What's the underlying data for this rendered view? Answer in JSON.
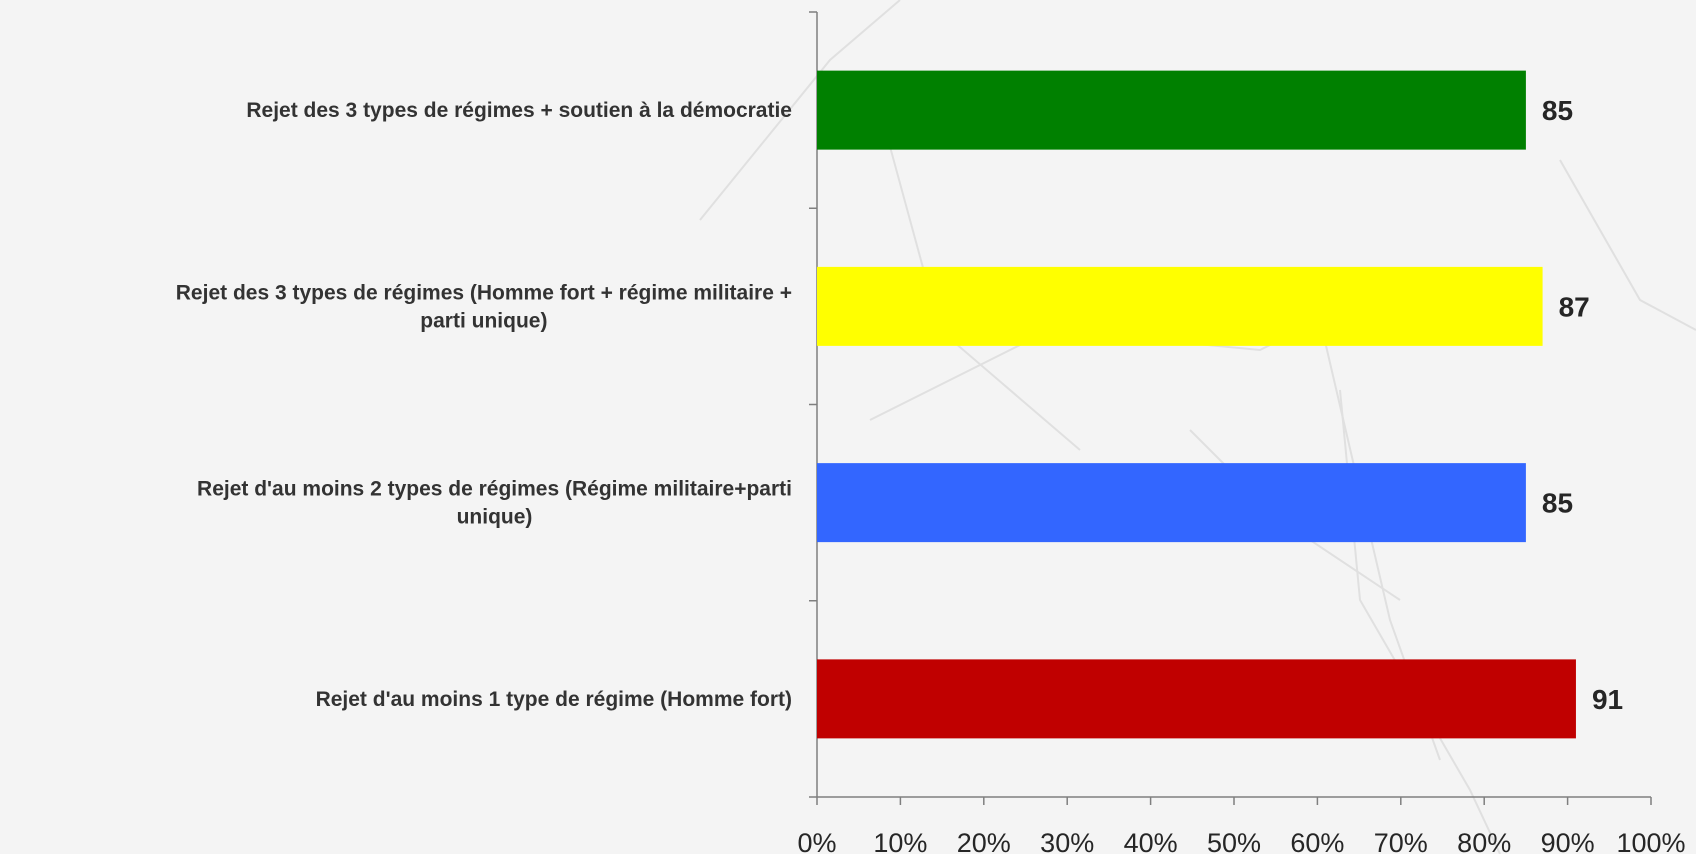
{
  "chart_data": {
    "type": "bar",
    "orientation": "horizontal",
    "categories": [
      "Rejet des 3 types de régimes + soutien à la démocratie",
      "Rejet des 3 types de régimes (Homme fort + régime militaire + parti unique)",
      "Rejet d'au moins 2 types de régimes (Régime militaire+parti unique)",
      "Rejet d'au moins 1 type de régime (Homme fort)"
    ],
    "values": [
      85,
      87,
      85,
      91
    ],
    "data_labels": [
      "85",
      "87",
      "85",
      "91"
    ],
    "bar_colors": [
      "#008000",
      "#ffff00",
      "#3366ff",
      "#c00000"
    ],
    "x_ticks": [
      "0%",
      "10%",
      "20%",
      "30%",
      "40%",
      "50%",
      "60%",
      "70%",
      "80%",
      "90%",
      "100%"
    ],
    "xlim": [
      0,
      100
    ],
    "grid": false,
    "legend": false,
    "title": "",
    "xlabel": "",
    "ylabel": ""
  }
}
